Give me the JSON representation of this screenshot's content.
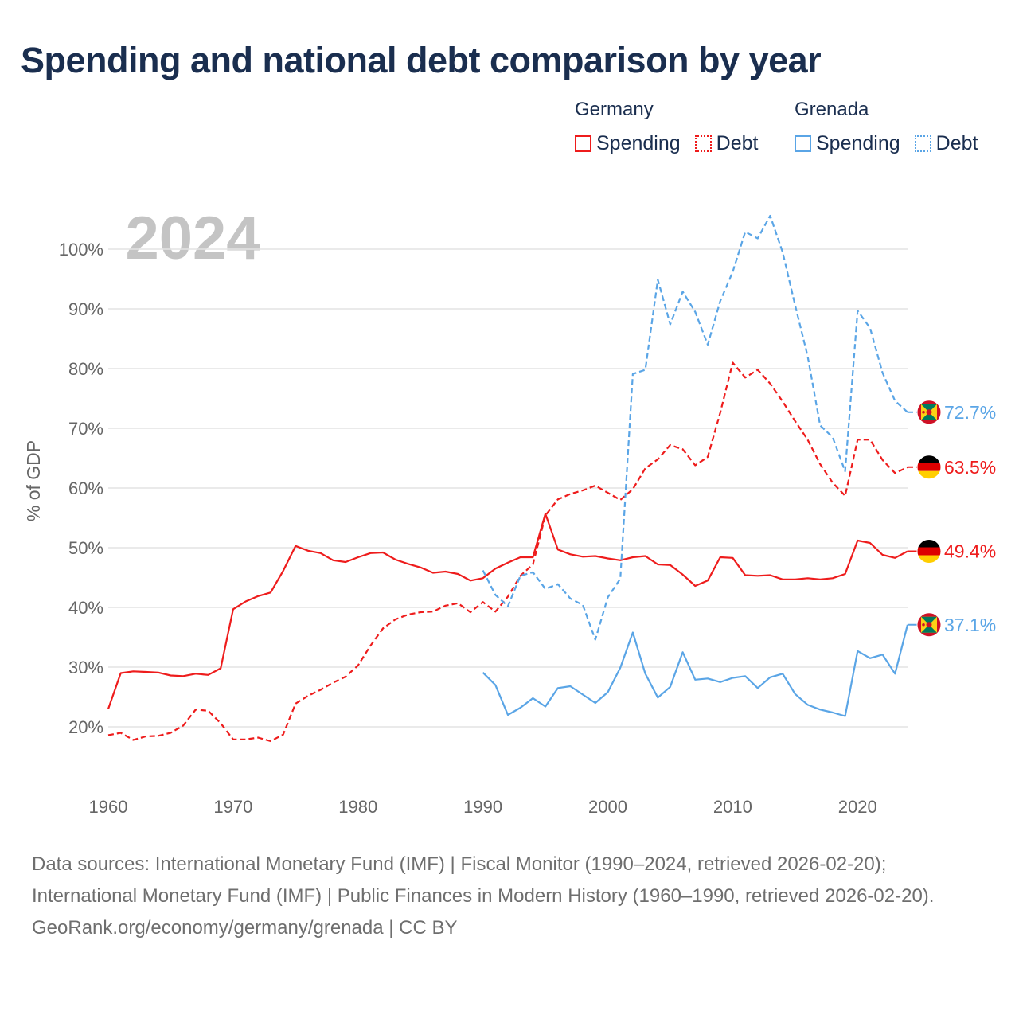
{
  "title": "Spending and national debt comparison by year",
  "legend": {
    "groups": [
      {
        "name": "Germany",
        "color": "#ee1c1c",
        "items": [
          {
            "label": "Spending",
            "style": "solid"
          },
          {
            "label": "Debt",
            "style": "dotted"
          }
        ]
      },
      {
        "name": "Grenada",
        "color": "#5aa5e6",
        "items": [
          {
            "label": "Spending",
            "style": "solid"
          },
          {
            "label": "Debt",
            "style": "dotted"
          }
        ]
      }
    ]
  },
  "chart_data": {
    "type": "line",
    "year_label": "2024",
    "ylabel": "% of GDP",
    "xlim": [
      1960,
      2024
    ],
    "ylim": [
      10,
      100
    ],
    "x_ticks": [
      1960,
      1970,
      1980,
      1990,
      2000,
      2010,
      2020
    ],
    "x_tick_labels": [
      "1960",
      "1970",
      "1980",
      "1990",
      "2000",
      "2010",
      "2020"
    ],
    "y_ticks": [
      20,
      30,
      40,
      50,
      60,
      70,
      80,
      90,
      100
    ],
    "y_tick_labels": [
      "20%",
      "30%",
      "40%",
      "50%",
      "60%",
      "70%",
      "80%",
      "90%",
      "100%"
    ],
    "series": [
      {
        "name": "Germany Spending",
        "country": "Germany",
        "color": "#ee1c1c",
        "dash": "solid",
        "start_year": 1960,
        "end_label": "49.4%",
        "flag": "germany-flag",
        "values": [
          23,
          29,
          29.3,
          29.2,
          29.1,
          28.6,
          28.5,
          28.9,
          28.7,
          29.8,
          39.7,
          41,
          41.9,
          42.5,
          46.1,
          50.3,
          49.5,
          49.1,
          47.9,
          47.6,
          48.4,
          49.1,
          49.2,
          48,
          47.3,
          46.7,
          45.8,
          46,
          45.6,
          44.5,
          44.9,
          46.5,
          47.5,
          48.4,
          48.4,
          55.7,
          49.7,
          48.9,
          48.5,
          48.6,
          48.2,
          47.9,
          48.4,
          48.6,
          47.2,
          47.1,
          45.5,
          43.6,
          44.5,
          48.4,
          48.3,
          45.4,
          45.3,
          45.4,
          44.7,
          44.7,
          44.9,
          44.7,
          44.9,
          45.6,
          51.2,
          50.8,
          48.8,
          48.3,
          49.4
        ]
      },
      {
        "name": "Germany Debt",
        "country": "Germany",
        "color": "#ee1c1c",
        "dash": "dashed",
        "start_year": 1960,
        "end_label": "63.5%",
        "flag": "germany-flag",
        "values": [
          18.6,
          19,
          17.8,
          18.4,
          18.5,
          19,
          20.2,
          22.9,
          22.7,
          20.6,
          17.9,
          17.9,
          18.2,
          17.6,
          18.7,
          23.9,
          25.2,
          26.2,
          27.4,
          28.4,
          30.3,
          33.6,
          36.5,
          38,
          38.8,
          39.2,
          39.3,
          40.3,
          40.7,
          39.2,
          40.9,
          39.3,
          41.8,
          45.3,
          47.2,
          55.4,
          58.1,
          59,
          59.6,
          60.4,
          59.2,
          58,
          59.8,
          63.3,
          64.8,
          67.2,
          66.5,
          63.8,
          65.2,
          72.6,
          81,
          78.5,
          79.8,
          77.5,
          74.5,
          71.2,
          68.1,
          64,
          60.9,
          58.7,
          68.1,
          68.1,
          64.7,
          62.5,
          63.5
        ]
      },
      {
        "name": "Grenada Spending",
        "country": "Grenada",
        "color": "#5aa5e6",
        "dash": "solid",
        "start_year": 1990,
        "end_label": "37.1%",
        "flag": "grenada-flag",
        "values": [
          29.1,
          27,
          22,
          23.2,
          24.8,
          23.4,
          26.5,
          26.8,
          25.4,
          24,
          25.8,
          29.9,
          35.8,
          28.9,
          24.9,
          26.7,
          32.5,
          27.9,
          28.1,
          27.5,
          28.2,
          28.5,
          26.5,
          28.3,
          28.9,
          25.5,
          23.7,
          22.9,
          22.4,
          21.8,
          32.7,
          31.5,
          32.1,
          28.9,
          37.1
        ]
      },
      {
        "name": "Grenada Debt",
        "country": "Grenada",
        "color": "#5aa5e6",
        "dash": "dashed",
        "start_year": 1990,
        "end_label": "72.7%",
        "flag": "grenada-flag",
        "values": [
          46.2,
          42.1,
          40.2,
          45.3,
          45.9,
          43.1,
          43.9,
          41.5,
          40.4,
          34.6,
          41.7,
          44.8,
          79.1,
          79.8,
          94.9,
          87.4,
          92.9,
          89.5,
          84,
          91.3,
          96.2,
          102.9,
          101.8,
          105.6,
          99.5,
          90.6,
          82.1,
          70.5,
          68.5,
          62.8,
          89.7,
          86.8,
          79.3,
          74.6,
          72.7
        ]
      }
    ]
  },
  "footer": {
    "sources": "Data sources: International Monetary Fund (IMF) | Fiscal Monitor (1990–2024, retrieved 2026-02-20); International Monetary Fund (IMF) | Public Finances in Modern History (1960–1990, retrieved 2026-02-20).",
    "credit": "GeoRank.org/economy/germany/grenada | CC BY"
  }
}
